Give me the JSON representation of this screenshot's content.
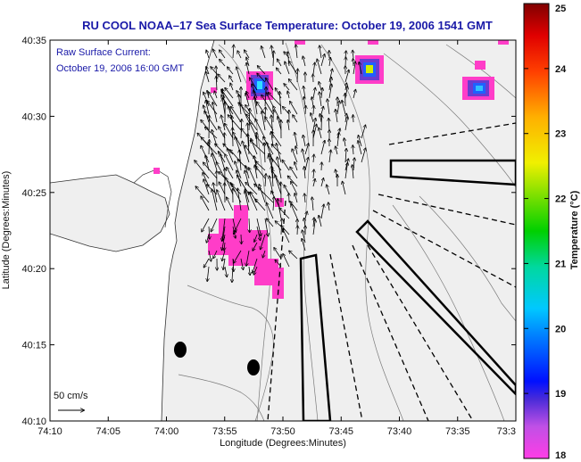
{
  "title": "RU COOL  NOAA–17  Sea Surface Temperature:  October 19, 2006 1541 GMT",
  "annotation": {
    "line1": "Raw Surface Current:",
    "line2": "October 19, 2006 16:00 GMT"
  },
  "scale": {
    "label": "50 cm/s"
  },
  "axes": {
    "xlabel": "Longitude (Degrees:Minutes)",
    "ylabel": "Latitude (Degrees:Minutes)",
    "xticks": [
      "74:10",
      "74:05",
      "74:00",
      "73:55",
      "73:50",
      "73:45",
      "73:40",
      "73:35",
      "73:3"
    ],
    "yticks": [
      "40:35",
      "40:30",
      "40:25",
      "40:20",
      "40:15",
      "40:10"
    ]
  },
  "colorbar": {
    "label": "Temperature (°C)",
    "ticks": [
      "25",
      "24",
      "23",
      "22",
      "21",
      "20",
      "19",
      "18"
    ],
    "range": [
      18,
      25
    ]
  },
  "colors": {
    "title": "#1a1aa8",
    "land": "#ffffff",
    "water": "#efefef",
    "warm_patch": "#ff3dc8"
  }
}
